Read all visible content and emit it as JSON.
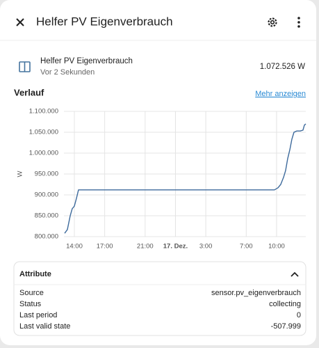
{
  "header": {
    "title": "Helfer PV Eigenverbrauch"
  },
  "entity": {
    "name": "Helfer PV Eigenverbrauch",
    "last_changed": "Vor 2 Sekunden",
    "state": "1.072.526 W"
  },
  "history": {
    "title": "Verlauf",
    "more_link": "Mehr anzeigen"
  },
  "chart_data": {
    "type": "line",
    "y_label": "W",
    "color": "#3d6a9c",
    "grid": true,
    "x": [
      13.04,
      13.31,
      13.59,
      13.79,
      14.0,
      14.21,
      14.41,
      33.79,
      34.14,
      34.41,
      34.69,
      34.89,
      35.1,
      35.31,
      35.51,
      35.72,
      35.99,
      36.34,
      36.61,
      36.75,
      36.89
    ],
    "values": [
      808000,
      817000,
      850000,
      867000,
      873000,
      892000,
      912000,
      912000,
      917000,
      925000,
      942000,
      958000,
      987000,
      1008000,
      1033000,
      1050000,
      1053000,
      1053000,
      1055000,
      1067000,
      1070000
    ],
    "xlim": [
      12.97,
      36.89
    ],
    "xticks": [
      {
        "value": 14,
        "label": "14:00"
      },
      {
        "value": 17,
        "label": "17:00"
      },
      {
        "value": 21,
        "label": "21:00"
      },
      {
        "value": 24,
        "label": "17. Dez."
      },
      {
        "value": 27,
        "label": "3:00"
      },
      {
        "value": 31,
        "label": "7:00"
      },
      {
        "value": 34,
        "label": "10:00"
      }
    ],
    "ylim": [
      800000,
      1100000
    ],
    "yticks": [
      {
        "value": 800000,
        "label": "800.000"
      },
      {
        "value": 850000,
        "label": "850.000"
      },
      {
        "value": 900000,
        "label": "900.000"
      },
      {
        "value": 950000,
        "label": "950.000"
      },
      {
        "value": 1000000,
        "label": "1.000.000"
      },
      {
        "value": 1050000,
        "label": "1.050.000"
      },
      {
        "value": 1100000,
        "label": "1.100.000"
      }
    ]
  },
  "attributes": {
    "title": "Attribute",
    "rows": [
      [
        "Source",
        "sensor.pv_eigenverbrauch"
      ],
      [
        "Status",
        "collecting"
      ],
      [
        "Last period",
        "0"
      ],
      [
        "Last valid state",
        "-507.999"
      ]
    ]
  }
}
